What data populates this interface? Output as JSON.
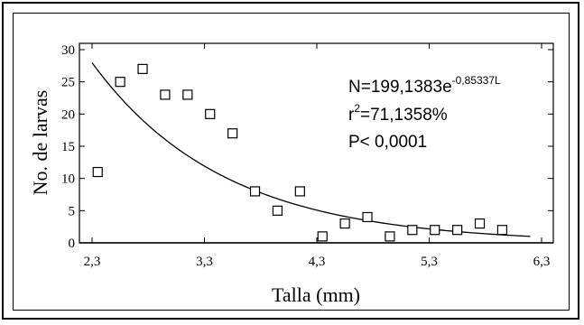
{
  "chart_data": {
    "type": "scatter",
    "xlabel": "Talla (mm)",
    "ylabel": "No. de larvas",
    "xlim": [
      2.3,
      6.3
    ],
    "ylim": [
      0,
      30
    ],
    "x_ticks": [
      2.3,
      3.3,
      4.3,
      5.3,
      6.3
    ],
    "x_tick_labels": [
      "2,3",
      "3,3",
      "4,3",
      "5,3",
      "6,3"
    ],
    "y_ticks": [
      0,
      5,
      10,
      15,
      20,
      25,
      30
    ],
    "y_tick_labels": [
      "0",
      "5",
      "10",
      "15",
      "20",
      "25",
      "30"
    ],
    "grid": false,
    "points": {
      "marker": "open-square",
      "x": [
        2.35,
        2.55,
        2.75,
        2.95,
        3.15,
        3.35,
        3.55,
        3.75,
        3.95,
        4.15,
        4.35,
        4.55,
        4.75,
        4.95,
        5.15,
        5.35,
        5.55,
        5.75,
        5.95
      ],
      "y": [
        11,
        25,
        27,
        23,
        23,
        20,
        17,
        8,
        5,
        8,
        1,
        3,
        4,
        1,
        2,
        2,
        2,
        3,
        2
      ]
    },
    "fit": {
      "model": "exponential",
      "a": 199.1383,
      "b": -0.85337,
      "x_range": [
        2.3,
        6.2
      ]
    },
    "annotations": {
      "equation_base": "N=199,1383e",
      "equation_exp": "-0,85337L",
      "r2_prefix": "r",
      "r2_sup": "2",
      "r2_value": "=71,1358%",
      "p_value": "P< 0,0001"
    }
  }
}
